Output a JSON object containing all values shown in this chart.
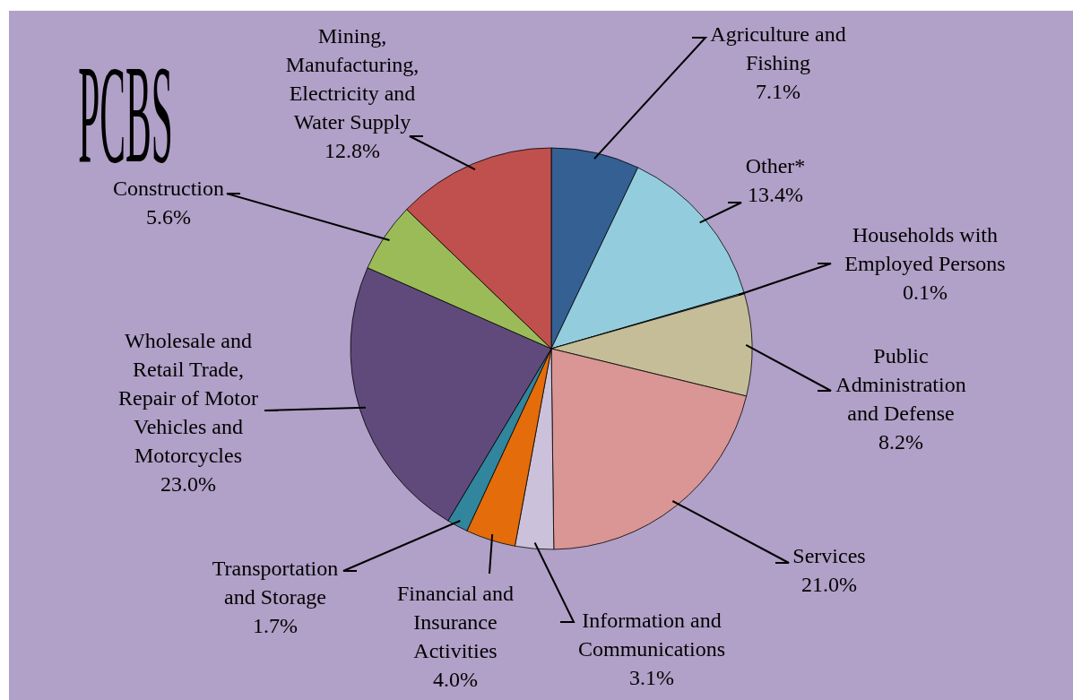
{
  "chart_data": {
    "type": "pie",
    "title": "PCBS",
    "categories": [
      "Agriculture and Fishing",
      "Other*",
      "Households with Employed Persons",
      "Public Administration and Defense",
      "Services",
      "Information and Communications",
      "Financial and Insurance Activities",
      "Transportation and Storage",
      "Wholesale and Retail Trade, Repair of Motor Vehicles and Motorcycles",
      "Construction",
      "Mining, Manufacturing, Electricity and Water Supply"
    ],
    "values": [
      7.1,
      13.4,
      0.1,
      8.2,
      21.0,
      3.1,
      4.0,
      1.7,
      23.0,
      5.6,
      12.8
    ],
    "value_labels": [
      "7.1%",
      "13.4%",
      "0.1%",
      "8.2%",
      "21.0%",
      "3.1%",
      "4.0%",
      "1.7%",
      "23.0%",
      "5.6%",
      "12.8%"
    ],
    "colors": [
      "#356094",
      "#93cddd",
      "#4f81bd",
      "#c4bd97",
      "#d99694",
      "#ccc1da",
      "#e46c0a",
      "#31859c",
      "#604a7b",
      "#9bbb59",
      "#c0504d"
    ]
  }
}
